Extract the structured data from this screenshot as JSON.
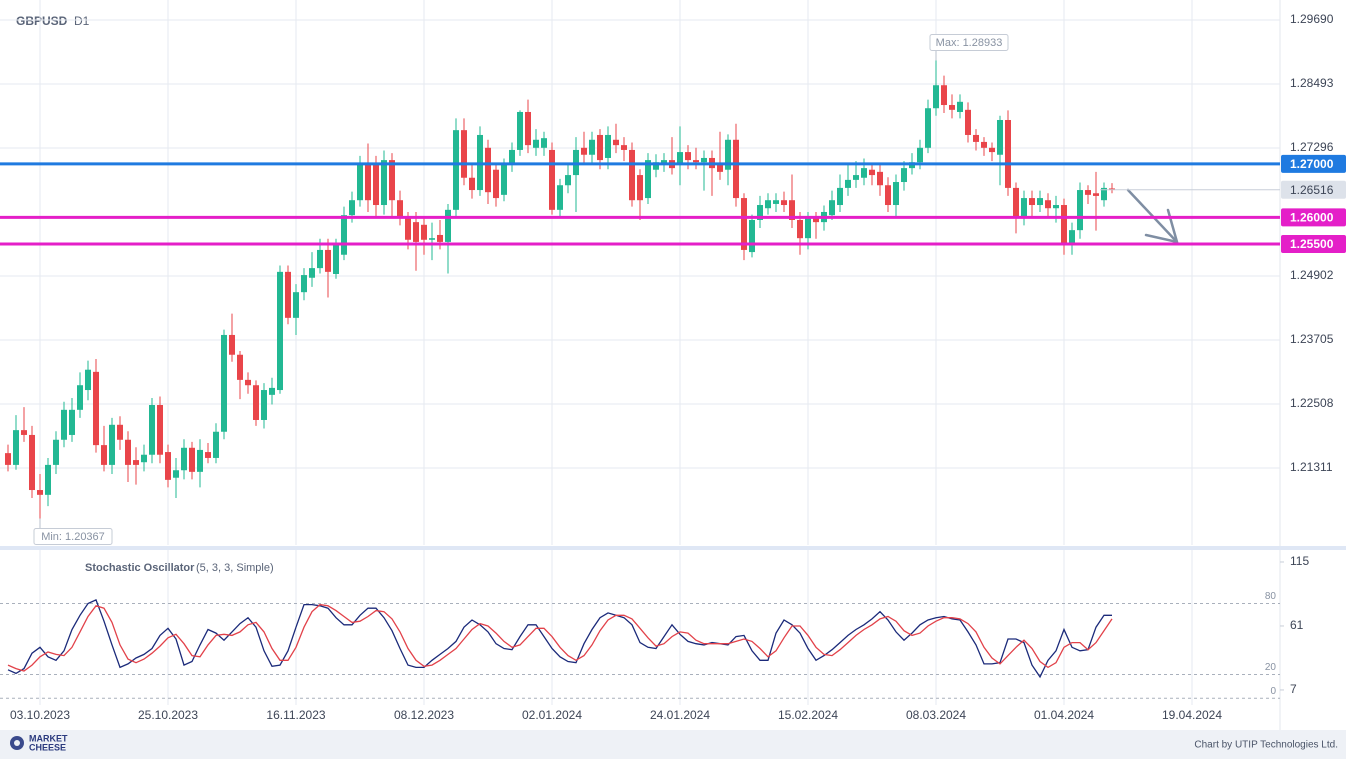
{
  "header": {
    "symbol": "GBPUSD",
    "timeframe": "D1"
  },
  "footer": {
    "logo": [
      "MARKET",
      "CHEESE"
    ],
    "credit": "Chart by UTIP Technologies Ltd."
  },
  "chart_data": [
    {
      "type": "candlestick",
      "xlim": [
        -1,
        159
      ],
      "xticks": [
        {
          "value": 4,
          "label": "03.10.2023"
        },
        {
          "value": 20,
          "label": "25.10.2023"
        },
        {
          "value": 36,
          "label": "16.11.2023"
        },
        {
          "value": 52,
          "label": "08.12.2023"
        },
        {
          "value": 68,
          "label": "02.01.2024"
        },
        {
          "value": 84,
          "label": "24.01.2024"
        },
        {
          "value": 100,
          "label": "15.02.2024"
        },
        {
          "value": 116,
          "label": "08.03.2024"
        },
        {
          "value": 132,
          "label": "01.04.2024"
        },
        {
          "value": 148,
          "label": "19.04.2024"
        }
      ],
      "ylim": [
        1.19872,
        1.30064
      ],
      "yticks": [
        {
          "value": 1.2969,
          "label": "1.29690"
        },
        {
          "value": 1.28493,
          "label": "1.28493"
        },
        {
          "value": 1.27296,
          "label": "1.27296"
        },
        {
          "value": 1.24902,
          "label": "1.24902"
        },
        {
          "value": 1.23705,
          "label": "1.23705"
        },
        {
          "value": 1.22508,
          "label": "1.22508"
        },
        {
          "value": 1.21311,
          "label": "1.21311"
        }
      ],
      "grid": true,
      "up_color": "#22b893",
      "down_color": "#e9454a",
      "candles": [
        [
          1.2159,
          1.2175,
          1.2125,
          1.2137
        ],
        [
          1.2137,
          1.223,
          1.2128,
          1.2202
        ],
        [
          1.2202,
          1.2245,
          1.218,
          1.2193
        ],
        [
          1.2193,
          1.221,
          1.2075,
          1.209
        ],
        [
          1.209,
          1.212,
          1.20367,
          1.2081
        ],
        [
          1.2081,
          1.215,
          1.206,
          1.2137
        ],
        [
          1.2137,
          1.22,
          1.212,
          1.2184
        ],
        [
          1.2184,
          1.2255,
          1.217,
          1.224
        ],
        [
          1.2193,
          1.2262,
          1.218,
          1.224
        ],
        [
          1.224,
          1.231,
          1.2225,
          1.2286
        ],
        [
          1.2277,
          1.2332,
          1.2258,
          1.2315
        ],
        [
          1.2311,
          1.2335,
          1.216,
          1.2174
        ],
        [
          1.2174,
          1.221,
          1.2125,
          1.2137
        ],
        [
          1.2137,
          1.2225,
          1.212,
          1.2212
        ],
        [
          1.2212,
          1.2228,
          1.2165,
          1.2184
        ],
        [
          1.2184,
          1.22,
          1.2105,
          1.2137
        ],
        [
          1.2146,
          1.217,
          1.21,
          1.2137
        ],
        [
          1.2142,
          1.2175,
          1.2125,
          1.2156
        ],
        [
          1.2156,
          1.2262,
          1.214,
          1.2249
        ],
        [
          1.2249,
          1.2265,
          1.214,
          1.2156
        ],
        [
          1.2161,
          1.2175,
          1.2095,
          1.2109
        ],
        [
          1.2113,
          1.215,
          1.2075,
          1.2127
        ],
        [
          1.2127,
          1.2185,
          1.211,
          1.2169
        ],
        [
          1.2169,
          1.218,
          1.211,
          1.2124
        ],
        [
          1.2124,
          1.2185,
          1.2095,
          1.2165
        ],
        [
          1.2161,
          1.2178,
          1.214,
          1.215
        ],
        [
          1.215,
          1.2215,
          1.214,
          1.2199
        ],
        [
          1.2199,
          1.239,
          1.2185,
          1.238
        ],
        [
          1.238,
          1.242,
          1.233,
          1.2343
        ],
        [
          1.2343,
          1.235,
          1.226,
          1.2296
        ],
        [
          1.2296,
          1.231,
          1.227,
          1.2286
        ],
        [
          1.2286,
          1.2295,
          1.221,
          1.2221
        ],
        [
          1.2221,
          1.229,
          1.2205,
          1.2277
        ],
        [
          1.2268,
          1.23,
          1.225,
          1.2281
        ],
        [
          1.2277,
          1.251,
          1.227,
          1.2498
        ],
        [
          1.2498,
          1.251,
          1.24,
          1.2412
        ],
        [
          1.2412,
          1.2475,
          1.238,
          1.246
        ],
        [
          1.246,
          1.2505,
          1.2445,
          1.2492
        ],
        [
          1.2487,
          1.2535,
          1.247,
          1.2505
        ],
        [
          1.2505,
          1.256,
          1.2495,
          1.2539
        ],
        [
          1.2539,
          1.256,
          1.245,
          1.2498
        ],
        [
          1.2494,
          1.256,
          1.2485,
          1.2548
        ],
        [
          1.253,
          1.262,
          1.252,
          1.2604
        ],
        [
          1.2604,
          1.2648,
          1.259,
          1.2632
        ],
        [
          1.2632,
          1.2715,
          1.262,
          1.2698
        ],
        [
          1.2698,
          1.2738,
          1.261,
          1.2632
        ],
        [
          1.2698,
          1.2715,
          1.26,
          1.2623
        ],
        [
          1.2623,
          1.2725,
          1.2605,
          1.2707
        ],
        [
          1.2707,
          1.272,
          1.26,
          1.2632
        ],
        [
          1.2632,
          1.265,
          1.2585,
          1.2599
        ],
        [
          1.2599,
          1.261,
          1.254,
          1.2558
        ],
        [
          1.2591,
          1.261,
          1.25,
          1.2554
        ],
        [
          1.2586,
          1.26,
          1.253,
          1.2558
        ],
        [
          1.2558,
          1.259,
          1.252,
          1.2561
        ],
        [
          1.2567,
          1.2595,
          1.254,
          1.2554
        ],
        [
          1.2554,
          1.2625,
          1.2495,
          1.2614
        ],
        [
          1.2614,
          1.2785,
          1.26,
          1.2763
        ],
        [
          1.2763,
          1.2785,
          1.266,
          1.2674
        ],
        [
          1.2674,
          1.27,
          1.2635,
          1.2651
        ],
        [
          1.2651,
          1.277,
          1.264,
          1.2754
        ],
        [
          1.273,
          1.2745,
          1.2625,
          1.2647
        ],
        [
          1.2689,
          1.27,
          1.262,
          1.2636
        ],
        [
          1.2642,
          1.271,
          1.263,
          1.2698
        ],
        [
          1.2698,
          1.274,
          1.2685,
          1.2726
        ],
        [
          1.2726,
          1.28,
          1.2715,
          1.2797
        ],
        [
          1.2797,
          1.282,
          1.272,
          1.2735
        ],
        [
          1.273,
          1.2765,
          1.2715,
          1.2745
        ],
        [
          1.273,
          1.276,
          1.2715,
          1.2748
        ],
        [
          1.2726,
          1.274,
          1.2605,
          1.2614
        ],
        [
          1.2614,
          1.2672,
          1.26,
          1.266
        ],
        [
          1.266,
          1.27,
          1.2645,
          1.2679
        ],
        [
          1.2679,
          1.275,
          1.261,
          1.2726
        ],
        [
          1.273,
          1.276,
          1.27,
          1.2717
        ],
        [
          1.2717,
          1.276,
          1.27,
          1.2745
        ],
        [
          1.2754,
          1.2765,
          1.269,
          1.2707
        ],
        [
          1.2711,
          1.277,
          1.269,
          1.2754
        ],
        [
          1.2745,
          1.2775,
          1.272,
          1.2735
        ],
        [
          1.2735,
          1.275,
          1.2705,
          1.2726
        ],
        [
          1.2726,
          1.274,
          1.262,
          1.2632
        ],
        [
          1.2679,
          1.269,
          1.2595,
          1.2632
        ],
        [
          1.2636,
          1.272,
          1.2625,
          1.2707
        ],
        [
          1.2689,
          1.2718,
          1.2675,
          1.2703
        ],
        [
          1.2698,
          1.272,
          1.2685,
          1.2707
        ],
        [
          1.2707,
          1.275,
          1.268,
          1.2692
        ],
        [
          1.2698,
          1.277,
          1.266,
          1.2722
        ],
        [
          1.2722,
          1.2735,
          1.269,
          1.2707
        ],
        [
          1.2707,
          1.273,
          1.269,
          1.2703
        ],
        [
          1.2703,
          1.2725,
          1.265,
          1.2711
        ],
        [
          1.2711,
          1.2725,
          1.264,
          1.2692
        ],
        [
          1.2698,
          1.276,
          1.267,
          1.2685
        ],
        [
          1.2689,
          1.2755,
          1.266,
          1.2745
        ],
        [
          1.2745,
          1.2775,
          1.262,
          1.2636
        ],
        [
          1.2636,
          1.2645,
          1.252,
          1.2539
        ],
        [
          1.2535,
          1.2605,
          1.2525,
          1.2595
        ],
        [
          1.2595,
          1.264,
          1.258,
          1.2623
        ],
        [
          1.2617,
          1.2645,
          1.2605,
          1.2632
        ],
        [
          1.2625,
          1.2645,
          1.261,
          1.2632
        ],
        [
          1.2632,
          1.2648,
          1.261,
          1.2623
        ],
        [
          1.2632,
          1.268,
          1.258,
          1.2595
        ],
        [
          1.2595,
          1.261,
          1.253,
          1.2561
        ],
        [
          1.2561,
          1.261,
          1.254,
          1.2599
        ],
        [
          1.2599,
          1.261,
          1.256,
          1.2591
        ],
        [
          1.2591,
          1.2622,
          1.2575,
          1.261
        ],
        [
          1.2604,
          1.265,
          1.2595,
          1.2632
        ],
        [
          1.2623,
          1.268,
          1.261,
          1.2655
        ],
        [
          1.2655,
          1.27,
          1.264,
          1.267
        ],
        [
          1.267,
          1.2705,
          1.2655,
          1.2679
        ],
        [
          1.2674,
          1.271,
          1.266,
          1.2692
        ],
        [
          1.2689,
          1.27,
          1.266,
          1.2679
        ],
        [
          1.2685,
          1.27,
          1.264,
          1.266
        ],
        [
          1.266,
          1.2675,
          1.261,
          1.2623
        ],
        [
          1.2623,
          1.268,
          1.26,
          1.2666
        ],
        [
          1.2666,
          1.2705,
          1.265,
          1.2692
        ],
        [
          1.2692,
          1.272,
          1.268,
          1.2703
        ],
        [
          1.2703,
          1.2745,
          1.269,
          1.273
        ],
        [
          1.273,
          1.282,
          1.272,
          1.2804
        ],
        [
          1.2804,
          1.28933,
          1.279,
          1.2847
        ],
        [
          1.2847,
          1.2865,
          1.2795,
          1.281
        ],
        [
          1.281,
          1.283,
          1.2785,
          1.2801
        ],
        [
          1.2797,
          1.283,
          1.2785,
          1.2816
        ],
        [
          1.2801,
          1.2815,
          1.274,
          1.2754
        ],
        [
          1.2754,
          1.2765,
          1.2725,
          1.2741
        ],
        [
          1.2741,
          1.275,
          1.2715,
          1.273
        ],
        [
          1.273,
          1.274,
          1.2705,
          1.2722
        ],
        [
          1.2717,
          1.279,
          1.266,
          1.2782
        ],
        [
          1.2782,
          1.28,
          1.264,
          1.2655
        ],
        [
          1.2655,
          1.2665,
          1.257,
          1.2599
        ],
        [
          1.2599,
          1.265,
          1.2585,
          1.2636
        ],
        [
          1.2636,
          1.265,
          1.26,
          1.2623
        ],
        [
          1.2623,
          1.265,
          1.261,
          1.2636
        ],
        [
          1.2632,
          1.2645,
          1.26,
          1.2617
        ],
        [
          1.2617,
          1.264,
          1.259,
          1.2623
        ],
        [
          1.2623,
          1.2635,
          1.253,
          1.2552
        ],
        [
          1.2552,
          1.259,
          1.253,
          1.2576
        ],
        [
          1.2576,
          1.2665,
          1.256,
          1.2651
        ],
        [
          1.2651,
          1.266,
          1.2625,
          1.2642
        ],
        [
          1.2645,
          1.2685,
          1.2575,
          1.264
        ],
        [
          1.2632,
          1.2665,
          1.262,
          1.2655
        ],
        [
          1.2654,
          1.2664,
          1.2645,
          1.26516
        ]
      ],
      "annotations": [
        {
          "label": "Max: 1.28933",
          "value": 1.28933,
          "index": 116
        },
        {
          "label": "Min: 1.20367",
          "value": 1.20367,
          "index": 4
        }
      ],
      "levels": [
        {
          "value": 1.27,
          "label": "1.27000",
          "color": "#1f7ae0"
        },
        {
          "value": 1.26,
          "label": "1.26000",
          "color": "#e41fc8"
        },
        {
          "value": 1.255,
          "label": "1.25500",
          "color": "#e41fc8"
        }
      ],
      "last_price": {
        "value": 1.26516,
        "label": "1.26516"
      }
    },
    {
      "type": "line",
      "title": "Stochastic Oscillator",
      "subtitle": "(5, 3, 3, Simple)",
      "ylim": [
        -5.7,
        126.8
      ],
      "yticks": [
        7,
        61,
        115
      ],
      "levels": [
        80,
        20,
        0
      ],
      "series": [
        {
          "color": "#1b2a7a",
          "values": [
            24,
            21,
            25,
            38,
            43,
            35,
            32,
            40,
            58,
            70,
            80,
            83,
            65,
            45,
            26,
            29,
            34,
            37,
            42,
            53,
            59,
            50,
            28,
            31,
            45,
            58,
            55,
            49,
            56,
            63,
            68,
            60,
            40,
            27,
            28,
            40,
            60,
            79,
            79,
            78,
            76,
            68,
            62,
            62,
            70,
            76,
            76,
            68,
            57,
            42,
            28,
            26,
            26,
            32,
            37,
            42,
            48,
            60,
            66,
            62,
            56,
            46,
            42,
            41,
            52,
            62,
            62,
            52,
            42,
            35,
            31,
            30,
            46,
            58,
            68,
            72,
            70,
            68,
            62,
            47,
            43,
            42,
            52,
            62,
            54,
            48,
            46,
            45,
            47,
            46,
            45,
            52,
            53,
            40,
            32,
            32,
            55,
            66,
            62,
            55,
            42,
            32,
            36,
            41,
            47,
            53,
            58,
            62,
            67,
            73,
            66,
            56,
            49,
            55,
            62,
            66,
            68,
            69,
            67,
            66,
            56,
            45,
            29,
            29,
            30,
            50,
            50,
            47,
            28,
            18,
            32,
            40,
            58,
            43,
            40,
            41,
            60,
            70,
            70
          ]
        },
        {
          "color": "#e2424a",
          "values": [
            28,
            25,
            23,
            28,
            35,
            39,
            37,
            36,
            43,
            56,
            69,
            78,
            76,
            64,
            45,
            33,
            30,
            33,
            38,
            44,
            51,
            54,
            46,
            36,
            35,
            45,
            53,
            54,
            53,
            56,
            62,
            64,
            56,
            42,
            32,
            32,
            43,
            60,
            73,
            79,
            78,
            74,
            69,
            64,
            65,
            69,
            74,
            73,
            67,
            56,
            42,
            32,
            27,
            28,
            32,
            37,
            42,
            50,
            58,
            63,
            61,
            55,
            48,
            43,
            45,
            52,
            59,
            59,
            52,
            43,
            36,
            32,
            36,
            45,
            57,
            66,
            70,
            70,
            67,
            59,
            51,
            44,
            46,
            52,
            56,
            55,
            49,
            46,
            46,
            46,
            46,
            48,
            50,
            48,
            42,
            35,
            40,
            51,
            61,
            61,
            53,
            43,
            37,
            36,
            41,
            47,
            53,
            58,
            62,
            67,
            69,
            65,
            57,
            53,
            55,
            61,
            65,
            68,
            68,
            67,
            63,
            56,
            43,
            34,
            29,
            36,
            43,
            49,
            42,
            31,
            26,
            30,
            43,
            47,
            47,
            41,
            47,
            57,
            67
          ]
        }
      ]
    }
  ]
}
